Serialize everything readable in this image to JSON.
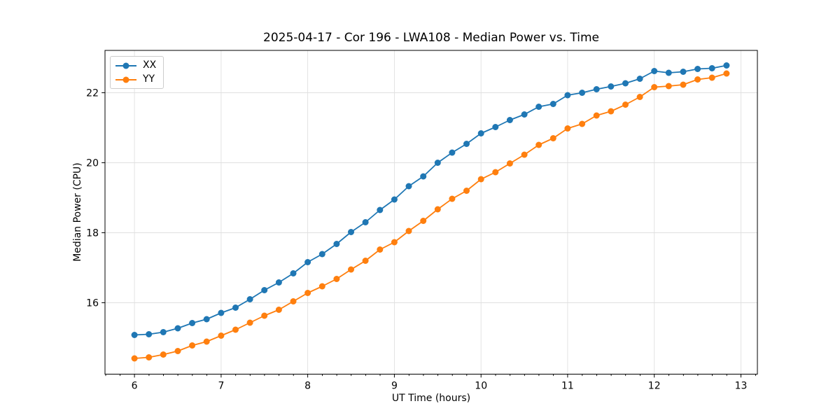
{
  "chart_data": {
    "type": "line",
    "title": "2025-04-17 - Cor 196 - LWA108 - Median Power vs. Time",
    "xlabel": "UT Time (hours)",
    "ylabel": "Median Power (CPU)",
    "xlim": [
      5.66,
      13.19
    ],
    "ylim": [
      13.96,
      23.21
    ],
    "xticks": [
      6,
      7,
      8,
      9,
      10,
      11,
      12,
      13
    ],
    "yticks": [
      16,
      18,
      20,
      22
    ],
    "x_minor_step": 0.1667,
    "grid": true,
    "grid_color": "#e0e0e0",
    "legend_position": "upper-left",
    "x": [
      6.0,
      6.1667,
      6.3333,
      6.5,
      6.6667,
      6.8333,
      7.0,
      7.1667,
      7.3333,
      7.5,
      7.6667,
      7.8333,
      8.0,
      8.1667,
      8.3333,
      8.5,
      8.6667,
      8.8333,
      9.0,
      9.1667,
      9.3333,
      9.5,
      9.6667,
      9.8333,
      10.0,
      10.1667,
      10.3333,
      10.5,
      10.6667,
      10.8333,
      11.0,
      11.1667,
      11.3333,
      11.5,
      11.6667,
      11.8333,
      12.0,
      12.1667,
      12.3333,
      12.5,
      12.6667,
      12.8333
    ],
    "series": [
      {
        "name": "XX",
        "color": "#1f77b4",
        "values": [
          15.08,
          15.1,
          15.16,
          15.27,
          15.42,
          15.53,
          15.71,
          15.86,
          16.1,
          16.36,
          16.58,
          16.84,
          17.16,
          17.39,
          17.68,
          18.02,
          18.3,
          18.65,
          18.95,
          19.33,
          19.61,
          20.0,
          20.29,
          20.54,
          20.84,
          21.02,
          21.22,
          21.38,
          21.6,
          21.68,
          21.93,
          22.0,
          22.1,
          22.18,
          22.27,
          22.4,
          22.62,
          22.57,
          22.6,
          22.68,
          22.7,
          22.78
        ]
      },
      {
        "name": "YY",
        "color": "#ff7f0e",
        "values": [
          14.41,
          14.44,
          14.52,
          14.62,
          14.78,
          14.89,
          15.06,
          15.23,
          15.43,
          15.63,
          15.8,
          16.04,
          16.28,
          16.47,
          16.68,
          16.95,
          17.2,
          17.52,
          17.73,
          18.05,
          18.34,
          18.67,
          18.97,
          19.2,
          19.53,
          19.73,
          19.98,
          20.23,
          20.51,
          20.7,
          20.98,
          21.11,
          21.35,
          21.47,
          21.66,
          21.88,
          22.16,
          22.19,
          22.23,
          22.38,
          22.43,
          22.55
        ]
      }
    ]
  }
}
